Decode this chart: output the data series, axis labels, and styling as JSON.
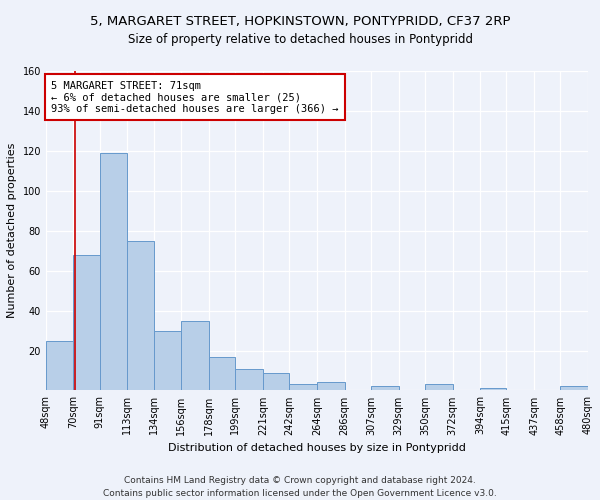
{
  "title": "5, MARGARET STREET, HOPKINSTOWN, PONTYPRIDD, CF37 2RP",
  "subtitle": "Size of property relative to detached houses in Pontypridd",
  "xlabel": "Distribution of detached houses by size in Pontypridd",
  "ylabel": "Number of detached properties",
  "bin_edges": [
    48,
    70,
    91,
    113,
    134,
    156,
    178,
    199,
    221,
    242,
    264,
    286,
    307,
    329,
    350,
    372,
    394,
    415,
    437,
    458,
    480
  ],
  "bin_labels": [
    "48sqm",
    "70sqm",
    "91sqm",
    "113sqm",
    "134sqm",
    "156sqm",
    "178sqm",
    "199sqm",
    "221sqm",
    "242sqm",
    "264sqm",
    "286sqm",
    "307sqm",
    "329sqm",
    "350sqm",
    "372sqm",
    "394sqm",
    "415sqm",
    "437sqm",
    "458sqm",
    "480sqm"
  ],
  "counts": [
    25,
    68,
    119,
    75,
    30,
    35,
    17,
    11,
    9,
    3,
    4,
    0,
    2,
    0,
    3,
    0,
    1,
    0,
    0,
    2
  ],
  "bar_color": "#b8cfe8",
  "bar_edge_color": "#6699cc",
  "red_line_x": 71,
  "annotation_line1": "5 MARGARET STREET: 71sqm",
  "annotation_line2": "← 6% of detached houses are smaller (25)",
  "annotation_line3": "93% of semi-detached houses are larger (366) →",
  "annotation_box_color": "#ffffff",
  "annotation_box_edge_color": "#cc0000",
  "ylim": [
    0,
    160
  ],
  "yticks": [
    0,
    20,
    40,
    60,
    80,
    100,
    120,
    140,
    160
  ],
  "footer_text": "Contains HM Land Registry data © Crown copyright and database right 2024.\nContains public sector information licensed under the Open Government Licence v3.0.",
  "background_color": "#eef2fa",
  "grid_color": "#ffffff",
  "title_fontsize": 9.5,
  "subtitle_fontsize": 8.5,
  "axis_label_fontsize": 8,
  "tick_fontsize": 7,
  "annotation_fontsize": 7.5,
  "footer_fontsize": 6.5
}
